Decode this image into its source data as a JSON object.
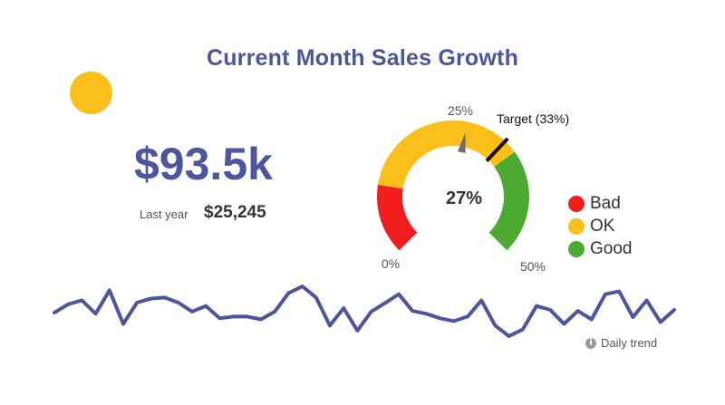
{
  "title": "Current Month Sales Growth",
  "accent_color": "#4b55a0",
  "dot_color": "#fbbf1a",
  "kpi": {
    "value": "$93.5k",
    "last_year_label": "Last year",
    "last_year_value": "$25,245"
  },
  "chart_data": [
    {
      "type": "gauge",
      "value": 27,
      "value_label": "27%",
      "min": 0,
      "max": 50,
      "min_label": "0%",
      "max_label": "50%",
      "mid_label": "25%",
      "target": 33,
      "target_label": "Target (33%)",
      "bands": [
        {
          "name": "Bad",
          "from": 0,
          "to": 10,
          "color": "#f21d1d"
        },
        {
          "name": "OK",
          "from": 10,
          "to": 35,
          "color": "#fbbf1a"
        },
        {
          "name": "Good",
          "from": 35,
          "to": 50,
          "color": "#4aaa32"
        }
      ],
      "legend": [
        {
          "label": "Bad",
          "color": "#f21d1d"
        },
        {
          "label": "OK",
          "color": "#fbbf1a"
        },
        {
          "label": "Good",
          "color": "#4aaa32"
        }
      ]
    },
    {
      "type": "line",
      "name": "Daily trend",
      "label": "Daily trend",
      "color": "#4b55a0",
      "values": [
        20,
        35,
        42,
        18,
        60,
        0,
        38,
        45,
        47,
        38,
        22,
        32,
        10,
        13,
        13,
        8,
        22,
        55,
        67,
        47,
        -3,
        28,
        -12,
        22,
        37,
        53,
        23,
        18,
        10,
        5,
        13,
        42,
        -3,
        -22,
        -10,
        32,
        25,
        0,
        23,
        8,
        53,
        58,
        12,
        42,
        3,
        25
      ],
      "ylim": [
        -30,
        80
      ]
    }
  ]
}
